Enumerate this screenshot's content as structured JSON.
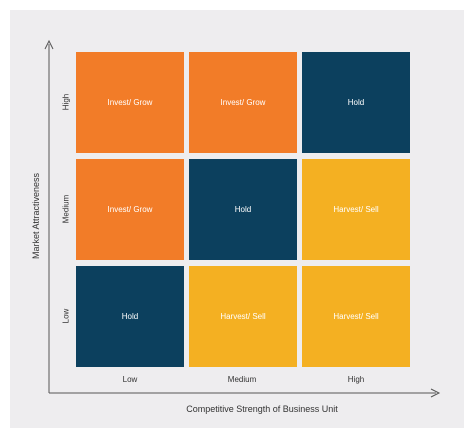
{
  "axes": {
    "y_title": "Market Attractiveness",
    "x_title": "Competitive Strength of Business Unit",
    "y_levels": [
      "High",
      "Medium",
      "Low"
    ],
    "x_levels": [
      "Low",
      "Medium",
      "High"
    ]
  },
  "colors": {
    "invest": "#f27c28",
    "hold": "#0c405e",
    "harvest": "#f4b022",
    "background": "#eeedef",
    "axis": "#555555"
  },
  "grid": [
    [
      {
        "label": "Invest/ Grow",
        "kind": "invest"
      },
      {
        "label": "Invest/ Grow",
        "kind": "invest"
      },
      {
        "label": "Hold",
        "kind": "hold"
      }
    ],
    [
      {
        "label": "Invest/ Grow",
        "kind": "invest"
      },
      {
        "label": "Hold",
        "kind": "hold"
      },
      {
        "label": "Harvest/ Sell",
        "kind": "harvest"
      }
    ],
    [
      {
        "label": "Hold",
        "kind": "hold"
      },
      {
        "label": "Harvest/ Sell",
        "kind": "harvest"
      },
      {
        "label": "Harvest/ Sell",
        "kind": "harvest"
      }
    ]
  ]
}
